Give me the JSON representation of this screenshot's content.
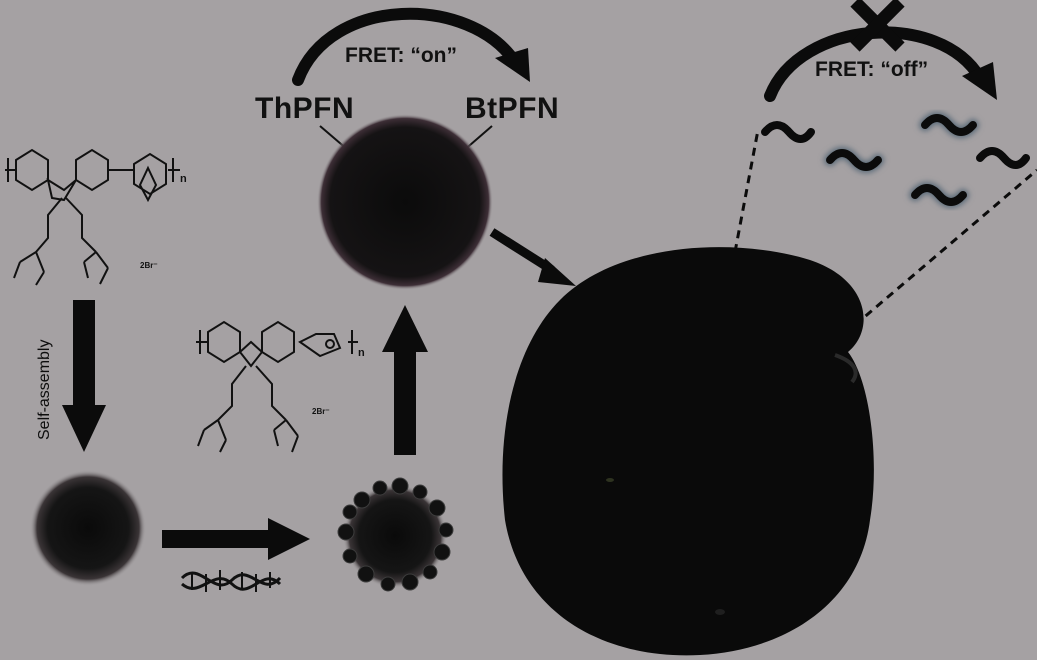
{
  "labels": {
    "fret_on": "FRET: “on”",
    "fret_off": "FRET: “off”",
    "thpfn": "ThPFN",
    "btpfn": "BtPFN",
    "self_assembly": "Self-assembly"
  },
  "chemistry": {
    "counter_ion_top": "2Br⁻",
    "counter_ion_mid": "2Br⁻",
    "repeat_top": "n",
    "repeat_mid": "n"
  },
  "colors": {
    "background": "#a5a1a3",
    "ink": "#0b0b0b",
    "glow": "#5a6a78"
  }
}
